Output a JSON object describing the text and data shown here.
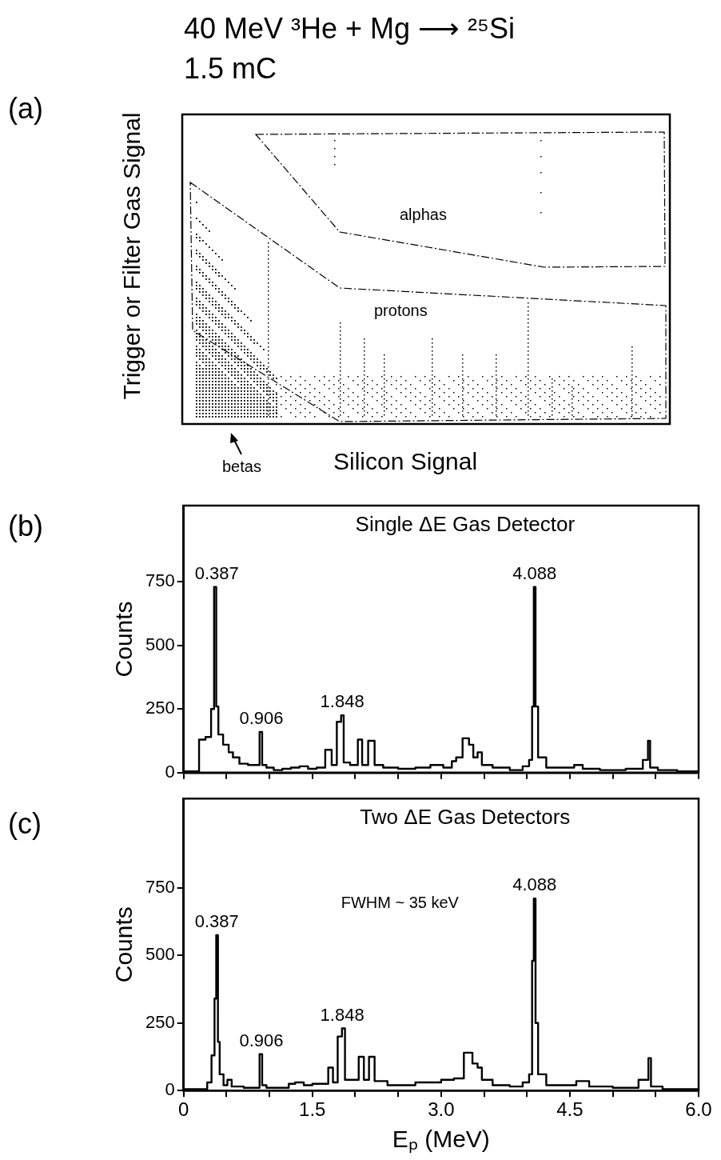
{
  "chart_data": [
    {
      "type": "other",
      "title": "40 MeV ³He + Mg ⟶ ²⁵Si",
      "subtitle": "1.5 mC",
      "xlabel": "Silicon Signal",
      "ylabel": "Trigger or Filter  Gas Signal",
      "annotations": [
        "(a)",
        "alphas",
        "protons",
        "betas"
      ]
    },
    {
      "type": "step",
      "title": "Single ΔE Gas Detector",
      "ylabel": "Counts",
      "xlim": [
        0,
        6
      ],
      "ylim": [
        0,
        1050
      ],
      "xticks": [
        0,
        0.5,
        1,
        1.5,
        2,
        2.5,
        3,
        3.5,
        4,
        4.5,
        5,
        5.5,
        6
      ],
      "yticks": [
        0,
        250,
        500,
        750
      ],
      "tick_labels": "y",
      "grid": false,
      "legend": false,
      "marker": "none",
      "line_style": "solid",
      "series": [
        {
          "color": "#000000",
          "x": [
            0,
            0.15,
            0.21,
            0.3,
            0.34,
            0.37,
            0.39,
            0.42,
            0.5,
            0.55,
            0.6,
            0.7,
            0.8,
            0.87,
            0.9,
            0.93,
            1.0,
            1.1,
            1.2,
            1.3,
            1.4,
            1.5,
            1.6,
            1.7,
            1.75,
            1.82,
            1.85,
            1.88,
            2.0,
            2.06,
            2.1,
            2.2,
            2.25,
            2.4,
            2.6,
            2.8,
            2.95,
            3.1,
            3.15,
            3.2,
            3.3,
            3.35,
            3.4,
            3.45,
            3.5,
            3.7,
            3.9,
            4.0,
            4.05,
            4.07,
            4.09,
            4.11,
            4.15,
            4.3,
            4.5,
            4.6,
            4.7,
            5.0,
            5.3,
            5.4,
            5.42,
            5.45,
            5.6,
            5.9,
            6.0
          ],
          "values": [
            5,
            5,
            130,
            140,
            250,
            730,
            260,
            150,
            110,
            80,
            60,
            35,
            30,
            30,
            160,
            30,
            20,
            10,
            15,
            20,
            25,
            15,
            20,
            90,
            30,
            200,
            225,
            40,
            30,
            130,
            30,
            125,
            30,
            20,
            15,
            20,
            30,
            20,
            45,
            60,
            135,
            110,
            60,
            80,
            30,
            20,
            10,
            25,
            50,
            260,
            730,
            260,
            60,
            20,
            20,
            30,
            15,
            10,
            15,
            50,
            125,
            20,
            10,
            5,
            5
          ]
        }
      ],
      "annotations": [
        "(b)",
        {
          "text": "0.387",
          "x": 0.387,
          "y": 730
        },
        {
          "text": "0.906",
          "x": 0.906,
          "y": 160
        },
        {
          "text": "1.848",
          "x": 1.848,
          "y": 225
        },
        {
          "text": "4.088",
          "x": 4.088,
          "y": 730
        }
      ]
    },
    {
      "type": "step",
      "title": "Two ΔE Gas Detectors",
      "xlabel": "Eₚ (MeV)",
      "ylabel": "Counts",
      "xlim": [
        0,
        6
      ],
      "ylim": [
        0,
        1080
      ],
      "xticks": [
        0,
        {
          "value": 0.5,
          "label": null
        },
        {
          "value": 1,
          "label": null
        },
        1.5,
        {
          "value": 2,
          "label": null
        },
        {
          "value": 2.5,
          "label": null
        },
        {
          "value": 3,
          "label": "3.0"
        },
        {
          "value": 3.5,
          "label": null
        },
        {
          "value": 4,
          "label": null
        },
        4.5,
        {
          "value": 5,
          "label": null
        },
        {
          "value": 5.5,
          "label": null
        },
        {
          "value": 6,
          "label": "6.0"
        }
      ],
      "yticks": [
        0,
        250,
        500,
        750
      ],
      "grid": false,
      "legend": false,
      "marker": "none",
      "line_style": "solid",
      "series": [
        {
          "color": "#000000",
          "x": [
            0,
            0.25,
            0.3,
            0.35,
            0.37,
            0.39,
            0.41,
            0.43,
            0.5,
            0.52,
            0.6,
            0.8,
            0.87,
            0.9,
            0.93,
            1.0,
            1.2,
            1.25,
            1.35,
            1.45,
            1.55,
            1.65,
            1.72,
            1.76,
            1.83,
            1.86,
            1.9,
            2.0,
            2.08,
            2.12,
            2.2,
            2.25,
            2.5,
            2.9,
            3.1,
            3.2,
            3.33,
            3.4,
            3.45,
            3.5,
            3.7,
            3.9,
            4.0,
            4.05,
            4.07,
            4.09,
            4.11,
            4.15,
            4.3,
            4.5,
            4.65,
            4.8,
            5.2,
            5.4,
            5.43,
            5.46,
            5.7,
            6.0
          ],
          "values": [
            5,
            5,
            30,
            130,
            340,
            575,
            180,
            60,
            20,
            40,
            15,
            10,
            10,
            135,
            20,
            10,
            10,
            25,
            30,
            20,
            25,
            25,
            85,
            30,
            200,
            230,
            40,
            40,
            125,
            40,
            125,
            35,
            20,
            30,
            40,
            45,
            140,
            100,
            85,
            40,
            20,
            15,
            30,
            60,
            480,
            710,
            250,
            60,
            20,
            20,
            35,
            15,
            10,
            40,
            120,
            15,
            5,
            5
          ]
        }
      ],
      "annotations": [
        "(c)",
        {
          "text": "0.387",
          "x": 0.387,
          "y": 575
        },
        {
          "text": "0.906",
          "x": 0.906,
          "y": 135
        },
        {
          "text": "1.848",
          "x": 1.848,
          "y": 230
        },
        {
          "text": "4.088",
          "x": 4.088,
          "y": 710
        },
        "FWHM ~ 35 keV"
      ]
    }
  ]
}
